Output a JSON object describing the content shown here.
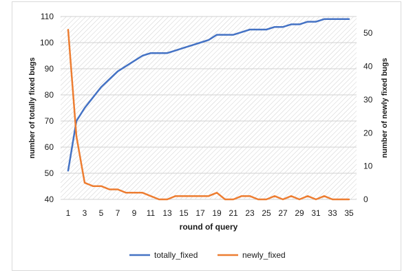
{
  "chart_data": {
    "type": "line",
    "title": "",
    "xlabel": "round of query",
    "ylabel_left": "number of totally fixed bugs",
    "ylabel_right": "number of newly fixed bugs",
    "x": [
      1,
      2,
      3,
      4,
      5,
      6,
      7,
      8,
      9,
      10,
      11,
      12,
      13,
      14,
      15,
      16,
      17,
      18,
      19,
      20,
      21,
      22,
      23,
      24,
      25,
      26,
      27,
      28,
      29,
      30,
      31,
      32,
      33,
      34,
      35
    ],
    "x_tick_labels": [
      "1",
      "3",
      "5",
      "7",
      "9",
      "11",
      "13",
      "15",
      "17",
      "19",
      "21",
      "23",
      "25",
      "27",
      "29",
      "31",
      "33",
      "35"
    ],
    "ylim_left": [
      40,
      110
    ],
    "yticks_left": [
      "40",
      "50",
      "60",
      "70",
      "80",
      "90",
      "100",
      "110"
    ],
    "ylim_right": [
      0,
      55
    ],
    "yticks_right": [
      "0",
      "10",
      "20",
      "30",
      "40",
      "50"
    ],
    "grid": "horizontal gridlines, hatched plot background",
    "legend_position": "bottom",
    "series": [
      {
        "name": "totally_fixed",
        "axis": "left",
        "color": "#4472c4",
        "values": [
          51,
          70,
          75,
          79,
          83,
          86,
          89,
          91,
          93,
          95,
          96,
          96,
          96,
          97,
          98,
          99,
          100,
          101,
          103,
          103,
          103,
          104,
          105,
          105,
          105,
          106,
          106,
          107,
          107,
          108,
          108,
          109,
          109,
          109,
          109
        ]
      },
      {
        "name": "newly_fixed",
        "axis": "right",
        "color": "#ed7d31",
        "values": [
          51,
          19,
          5,
          4,
          4,
          3,
          3,
          2,
          2,
          2,
          1,
          0,
          0,
          1,
          1,
          1,
          1,
          1,
          2,
          0,
          0,
          1,
          1,
          0,
          0,
          1,
          0,
          1,
          0,
          1,
          0,
          1,
          0,
          0,
          0
        ]
      }
    ]
  }
}
